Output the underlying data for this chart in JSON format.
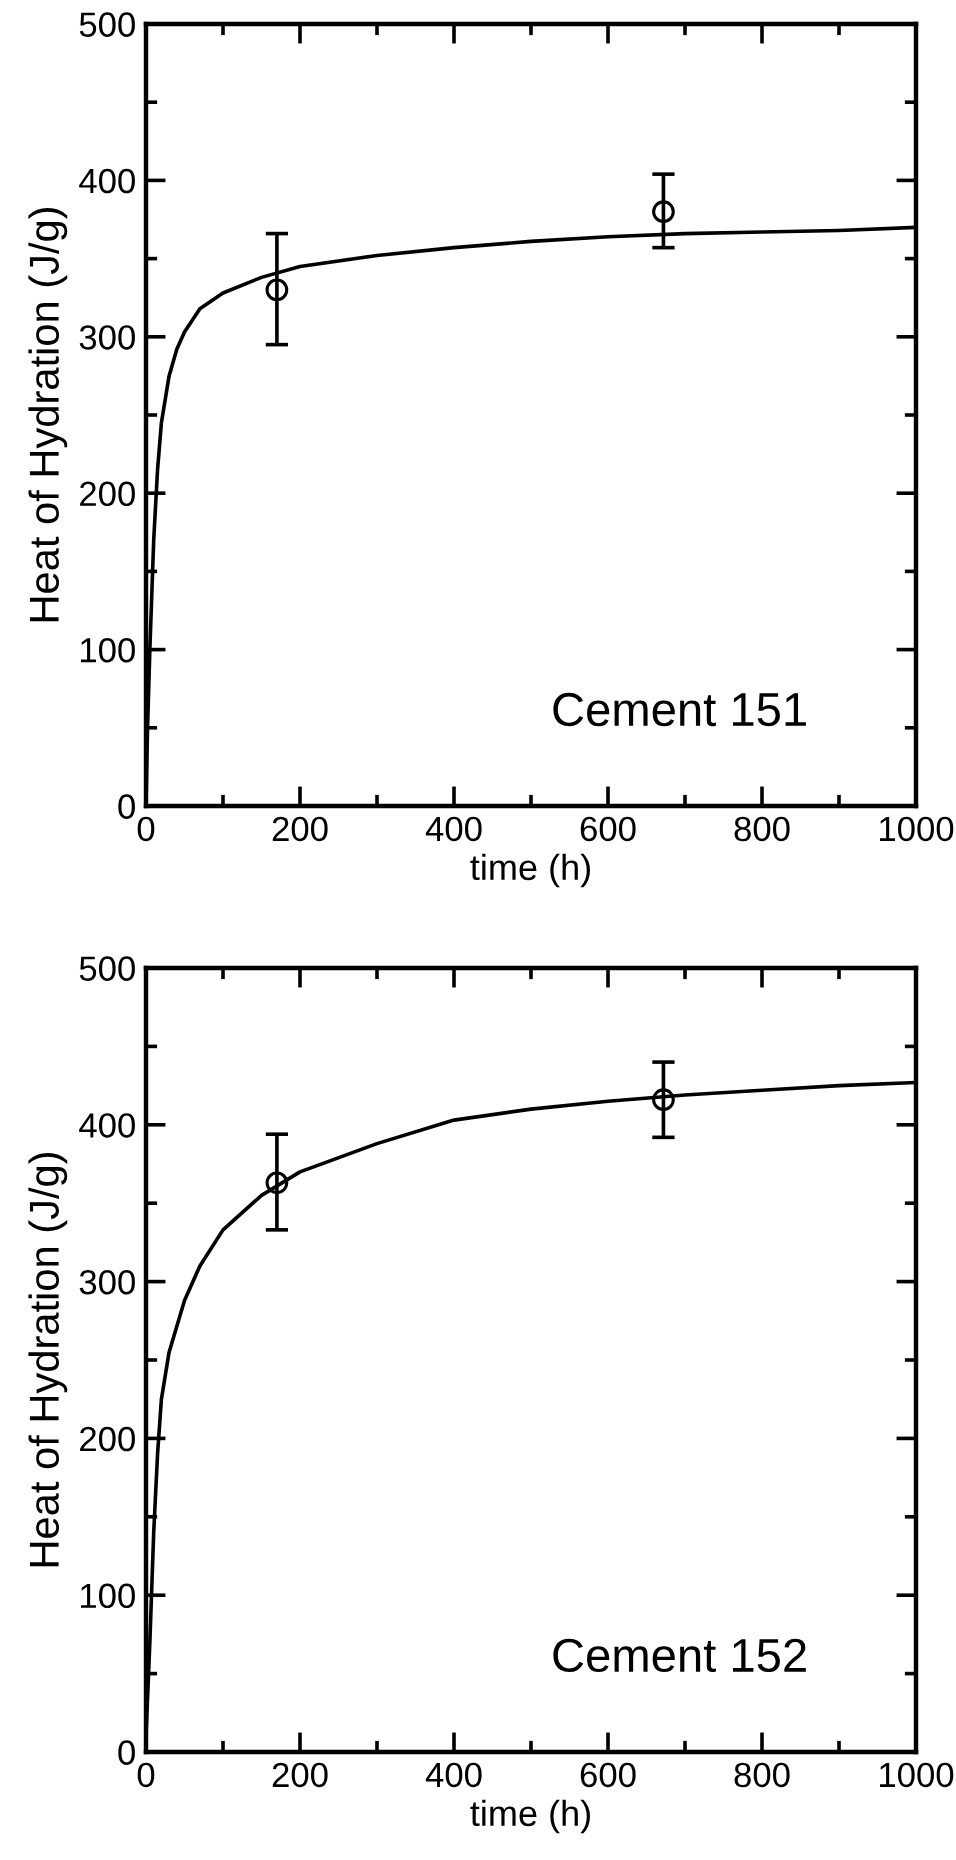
{
  "chart_data": [
    {
      "type": "line",
      "xlabel": "time (h)",
      "ylabel": "Heat of Hydration (J/g)",
      "annotations": [
        "Cement 151"
      ],
      "xlim": [
        0,
        1000
      ],
      "ylim": [
        0,
        500
      ],
      "xticks": [
        0,
        200,
        400,
        600,
        800,
        1000
      ],
      "yticks": [
        0,
        100,
        200,
        300,
        400,
        500
      ],
      "grid": false,
      "legend": false,
      "series": [
        {
          "color": "#000000",
          "marker": "none",
          "line_style": "solid",
          "x": [
            0,
            2,
            5,
            10,
            15,
            20,
            30,
            40,
            50,
            70,
            100,
            150,
            200,
            300,
            400,
            500,
            600,
            700,
            800,
            900,
            1000
          ],
          "values": [
            0,
            50,
            100,
            170,
            215,
            245,
            275,
            292,
            303,
            318,
            328,
            338,
            345,
            352,
            357,
            361,
            364,
            366,
            367,
            368,
            370
          ]
        },
        {
          "type": "scatter",
          "color": "#000000",
          "marker": "circle",
          "x": [
            170,
            672
          ],
          "values": [
            330,
            380
          ],
          "errors": [
            [
              295,
              366
            ],
            [
              357,
              404
            ]
          ]
        }
      ]
    },
    {
      "type": "line",
      "xlabel": "time (h)",
      "ylabel": "Heat of Hydration (J/g)",
      "annotations": [
        "Cement 152"
      ],
      "xlim": [
        0,
        1000
      ],
      "ylim": [
        0,
        500
      ],
      "xticks": [
        0,
        200,
        400,
        600,
        800,
        1000
      ],
      "yticks": [
        0,
        100,
        200,
        300,
        400,
        500
      ],
      "grid": false,
      "legend": false,
      "series": [
        {
          "color": "#000000",
          "marker": "none",
          "line_style": "solid",
          "x": [
            0,
            5,
            10,
            15,
            20,
            30,
            50,
            70,
            100,
            150,
            200,
            300,
            400,
            500,
            600,
            700,
            800,
            900,
            1000
          ],
          "values": [
            10,
            70,
            140,
            190,
            225,
            255,
            288,
            310,
            333,
            355,
            370,
            388,
            403,
            410,
            415,
            419,
            422,
            425,
            427
          ]
        },
        {
          "type": "scatter",
          "color": "#000000",
          "marker": "circle",
          "x": [
            170,
            672
          ],
          "values": [
            363,
            416
          ],
          "errors": [
            [
              333,
              394
            ],
            [
              392,
              440
            ]
          ]
        }
      ]
    }
  ]
}
